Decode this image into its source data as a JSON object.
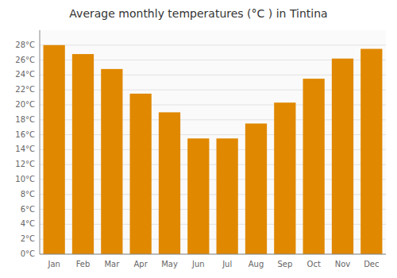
{
  "chart_data": {
    "type": "bar",
    "title": "Average monthly temperatures (°C ) in Tintina",
    "categories": [
      "Jan",
      "Feb",
      "Mar",
      "Apr",
      "May",
      "Jun",
      "Jul",
      "Aug",
      "Sep",
      "Oct",
      "Nov",
      "Dec"
    ],
    "values": [
      28.0,
      26.8,
      24.8,
      21.5,
      19.0,
      15.5,
      15.5,
      17.5,
      20.3,
      23.5,
      26.2,
      27.5
    ],
    "color": "#E08800",
    "ylim": [
      0,
      30
    ],
    "yticks": [
      {
        "value": 0,
        "label": "0°C"
      },
      {
        "value": 2,
        "label": "2°C"
      },
      {
        "value": 4,
        "label": "4°C"
      },
      {
        "value": 6,
        "label": "6°C"
      },
      {
        "value": 8,
        "label": "8°C"
      },
      {
        "value": 10,
        "label": "10°C"
      },
      {
        "value": 12,
        "label": "12°C"
      },
      {
        "value": 14,
        "label": "14°C"
      },
      {
        "value": 16,
        "label": "16°C"
      },
      {
        "value": 18,
        "label": "18°C"
      },
      {
        "value": 20,
        "label": "20°C"
      },
      {
        "value": 22,
        "label": "22°C"
      },
      {
        "value": 24,
        "label": "24°C"
      },
      {
        "value": 26,
        "label": "26°C"
      },
      {
        "value": 28,
        "label": "28°C"
      }
    ],
    "grid": true
  }
}
